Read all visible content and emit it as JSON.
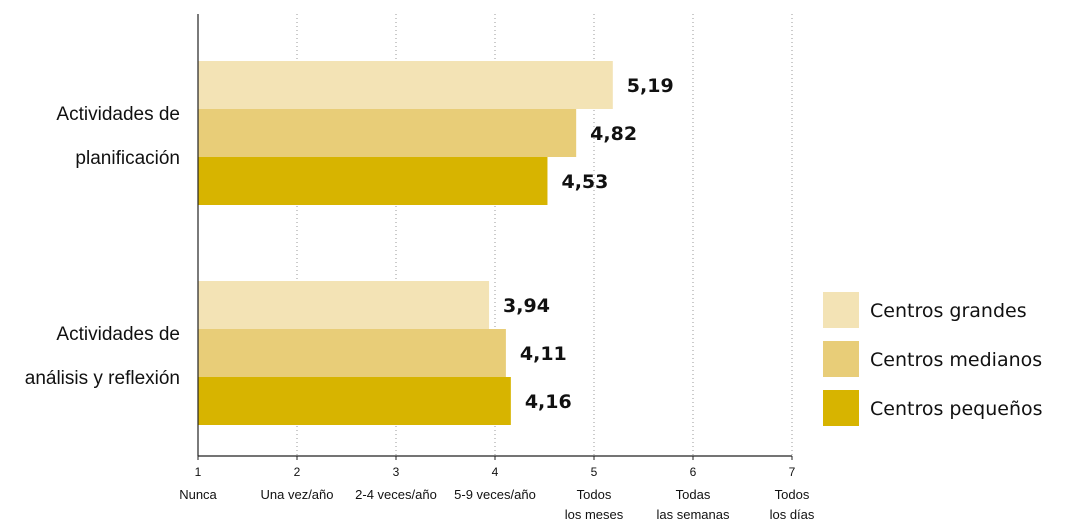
{
  "chart_data": {
    "type": "bar",
    "orientation": "horizontal",
    "categories": [
      [
        "Actividades de",
        "planificación"
      ],
      [
        "Actividades de",
        "análisis y reflexión"
      ]
    ],
    "series": [
      {
        "name": "Centros grandes",
        "color": "#f3e3b5",
        "values": [
          5.19,
          3.94
        ],
        "labels": [
          "5,19",
          "3,94"
        ]
      },
      {
        "name": "Centros medianos",
        "color": "#e8cd78",
        "values": [
          4.82,
          4.11
        ],
        "labels": [
          "4,82",
          "4,11"
        ]
      },
      {
        "name": "Centros pequeños",
        "color": "#d7b400",
        "values": [
          4.53,
          4.16
        ],
        "labels": [
          "4,53",
          "4,16"
        ]
      }
    ],
    "xlim": [
      1,
      7
    ],
    "xticks": [
      {
        "value": 1,
        "num": "1",
        "label": [
          "Nunca"
        ]
      },
      {
        "value": 2,
        "num": "2",
        "label": [
          "Una vez/año"
        ]
      },
      {
        "value": 3,
        "num": "3",
        "label": [
          "2-4 veces/año"
        ]
      },
      {
        "value": 4,
        "num": "4",
        "label": [
          "5-9 veces/año"
        ]
      },
      {
        "value": 5,
        "num": "5",
        "label": [
          "Todos",
          "los meses"
        ]
      },
      {
        "value": 6,
        "num": "6",
        "label": [
          "Todas",
          "las semanas"
        ]
      },
      {
        "value": 7,
        "num": "7",
        "label": [
          "Todos",
          "los días"
        ]
      }
    ],
    "grid": "vertical dotted",
    "legend_position": "right"
  }
}
